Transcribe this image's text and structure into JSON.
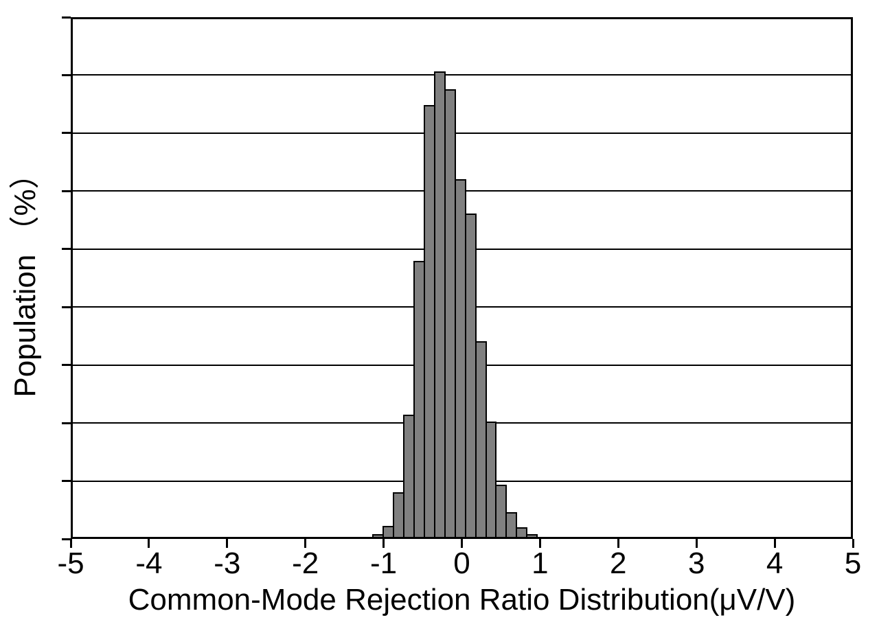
{
  "figure": {
    "background_color": "#ffffff",
    "text_color": "#000000"
  },
  "chart_data": {
    "type": "bar",
    "subtype": "histogram",
    "title": "",
    "xlabel": "Common-Mode Rejection Ratio Distribution(μV/V)",
    "ylabel": "Population （%）",
    "xlim": [
      -5,
      5
    ],
    "ylim": [
      0,
      18
    ],
    "xticks": [
      -5,
      -4,
      -3,
      -2,
      -1,
      0,
      1,
      2,
      3,
      4,
      5
    ],
    "xtick_labels": [
      "-5",
      "-4",
      "-3",
      "-2",
      "-1",
      "0",
      "1",
      "2",
      "3",
      "4",
      "5"
    ],
    "ytick_interval_pct": 2,
    "ytick_labels_visible": false,
    "grid": "horizontal",
    "grid_color": "#000000",
    "bar_fill_color": "#808080",
    "bar_edge_color": "#000000",
    "bin_edges": [
      -1.142,
      -1.011,
      -0.88,
      -0.749,
      -0.618,
      -0.487,
      -0.356,
      -0.225,
      -0.094,
      0.037,
      0.168,
      0.299,
      0.43,
      0.561,
      0.692,
      0.823,
      0.954
    ],
    "values_pct": [
      0.17,
      0.45,
      1.62,
      4.29,
      9.6,
      14.97,
      16.13,
      15.52,
      12.42,
      11.23,
      6.81,
      4.05,
      1.86,
      0.92,
      0.4,
      0.16
    ]
  }
}
